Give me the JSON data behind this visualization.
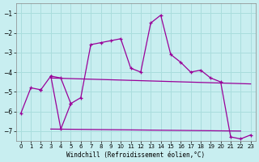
{
  "xlabel": "Windchill (Refroidissement éolien,°C)",
  "background_color": "#c8eef0",
  "grid_color": "#aadddd",
  "line_color": "#990099",
  "xlim_min": -0.5,
  "xlim_max": 23.5,
  "ylim_min": -7.5,
  "ylim_max": -0.5,
  "yticks": [
    -7,
    -6,
    -5,
    -4,
    -3,
    -2,
    -1
  ],
  "xticks": [
    0,
    1,
    2,
    3,
    4,
    5,
    6,
    7,
    8,
    9,
    10,
    11,
    12,
    13,
    14,
    15,
    16,
    17,
    18,
    19,
    20,
    21,
    22,
    23
  ],
  "series": [
    {
      "x": [
        2,
        3,
        4,
        5,
        6,
        7,
        8,
        9,
        10,
        11,
        12,
        13,
        14,
        15,
        16,
        17,
        18,
        19,
        20,
        21,
        22,
        23
      ],
      "y": [
        -4.9,
        -4.2,
        -4.3,
        -5.6,
        -5.3,
        -2.6,
        -2.5,
        -2.4,
        -2.3,
        -3.8,
        -4.0,
        -1.5,
        -1.1,
        -3.1,
        -3.5,
        -4.0,
        -3.9,
        -4.3,
        -4.5,
        -7.3,
        -7.4,
        -7.2
      ],
      "marker": true
    },
    {
      "x": [
        0,
        1,
        2
      ],
      "y": [
        -6.1,
        -4.8,
        -4.9
      ],
      "marker": true
    },
    {
      "x": [
        3,
        4,
        5
      ],
      "y": [
        -4.2,
        -6.9,
        -5.6
      ],
      "marker": true
    },
    {
      "x": [
        3,
        23
      ],
      "y": [
        -4.3,
        -4.6
      ],
      "marker": false
    },
    {
      "x": [
        3,
        22
      ],
      "y": [
        -6.9,
        -7.0
      ],
      "marker": false
    }
  ]
}
